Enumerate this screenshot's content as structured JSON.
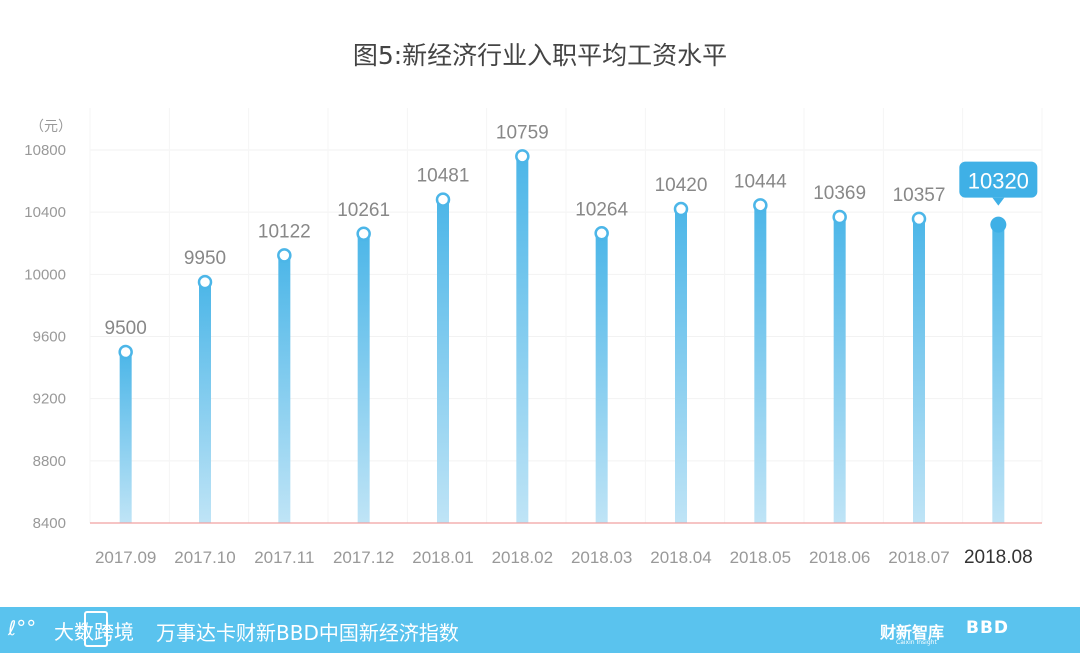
{
  "title": "图5:新经济行业入职平均工资水平",
  "colors": {
    "bar_top": "#4cb6e8",
    "bar_bottom": "#bfe4f6",
    "baseline": "#f1a0a0",
    "callout": "#3fb0e6",
    "footer": "#5ac3ee"
  },
  "chart_data": {
    "type": "bar",
    "title": "图5:新经济行业入职平均工资水平",
    "unit_label": "（元）",
    "categories": [
      "2017.09",
      "2017.10",
      "2017.11",
      "2017.12",
      "2018.01",
      "2018.02",
      "2018.03",
      "2018.04",
      "2018.05",
      "2018.06",
      "2018.07",
      "2018.08"
    ],
    "values": [
      9500,
      9950,
      10122,
      10261,
      10481,
      10759,
      10264,
      10420,
      10444,
      10369,
      10357,
      10320
    ],
    "data_labels": [
      "9500",
      "9950",
      "10122",
      "10261",
      "10481",
      "10759",
      "10264",
      "10420",
      "10444",
      "10369",
      "10357",
      "10320"
    ],
    "highlight_index": 11,
    "yticks": [
      "8400",
      "8800",
      "9200",
      "9600",
      "10000",
      "10400",
      "10800"
    ],
    "ylim": [
      8400,
      11000
    ],
    "grid": true,
    "legend": "none"
  },
  "footer": {
    "logo_text": "大数跨境",
    "caption": "万事达卡财新BBD中国新经济指数",
    "brand_cn": "财新智库",
    "brand_en": "Caixin Insight",
    "brand_bbd": "BBD"
  }
}
